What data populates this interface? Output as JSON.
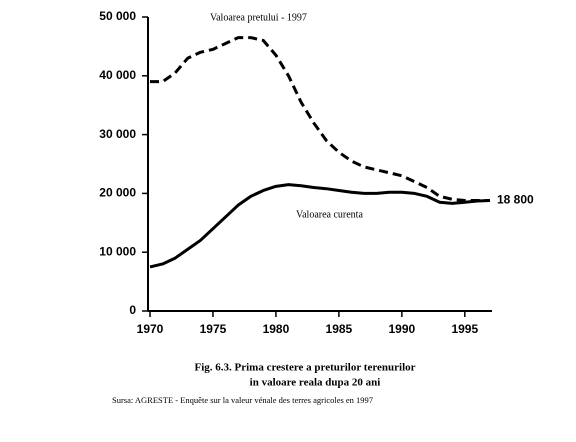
{
  "chart_data": {
    "type": "line",
    "x": [
      1970,
      1971,
      1972,
      1973,
      1974,
      1975,
      1976,
      1977,
      1978,
      1979,
      1980,
      1981,
      1982,
      1983,
      1984,
      1985,
      1986,
      1987,
      1988,
      1989,
      1990,
      1991,
      1992,
      1993,
      1994,
      1995,
      1996,
      1997
    ],
    "series": [
      {
        "name": "Valoarea pretului - 1997",
        "color": "#000000",
        "dash": true,
        "values": [
          39000,
          39000,
          40500,
          43000,
          44000,
          44500,
          45500,
          46500,
          46500,
          46000,
          43500,
          40000,
          35500,
          32000,
          29000,
          27000,
          25500,
          24500,
          24000,
          23500,
          23000,
          22000,
          21000,
          19500,
          19000,
          18800,
          18800,
          18800
        ]
      },
      {
        "name": "Valoarea curenta",
        "color": "#000000",
        "dash": false,
        "values": [
          7500,
          8000,
          9000,
          10500,
          12000,
          14000,
          16000,
          18000,
          19500,
          20500,
          21200,
          21500,
          21300,
          21000,
          20800,
          20500,
          20200,
          20000,
          20000,
          20200,
          20200,
          20000,
          19500,
          18500,
          18300,
          18500,
          18700,
          18800
        ]
      }
    ],
    "xlim": [
      1970,
      1997
    ],
    "xticks": [
      1970,
      1975,
      1980,
      1985,
      1990,
      1995
    ],
    "ylim": [
      0,
      50000
    ],
    "yticks": [
      0,
      {
        "value": 10000,
        "label": "10 000"
      },
      {
        "value": 20000,
        "label": "20 000"
      },
      {
        "value": 30000,
        "label": "30 000"
      },
      {
        "value": 40000,
        "label": "40 000"
      },
      {
        "value": 50000,
        "label": "50 000"
      }
    ],
    "annotations": [
      {
        "text": "18 800",
        "x": 1997,
        "y": 18800
      }
    ],
    "caption": [
      "Fig. 6.3. Prima crestere a preturilor terenurilor",
      "in valoare reala dupa 20 ani"
    ],
    "source": "Sursa: AGRESTE - Enquête sur la valeur vénale des terres agricoles en 1997"
  }
}
